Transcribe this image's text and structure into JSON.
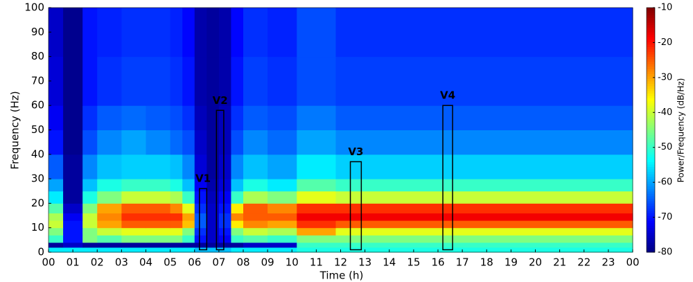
{
  "chart_data": {
    "type": "heatmap",
    "colormap": "jet",
    "xlabel": "Time (h)",
    "ylabel": "Frequency (Hz)",
    "colorbar_label": "Power/Frequency (dB/Hz)",
    "xlim": [
      0,
      24
    ],
    "ylim": [
      0,
      100
    ],
    "clim": [
      -80,
      -10
    ],
    "xticks": [
      {
        "value": 0,
        "label": "00"
      },
      {
        "value": 1,
        "label": "01"
      },
      {
        "value": 2,
        "label": "02"
      },
      {
        "value": 3,
        "label": "03"
      },
      {
        "value": 4,
        "label": "04"
      },
      {
        "value": 5,
        "label": "05"
      },
      {
        "value": 6,
        "label": "06"
      },
      {
        "value": 7,
        "label": "07"
      },
      {
        "value": 8,
        "label": "08"
      },
      {
        "value": 9,
        "label": "09"
      },
      10,
      11,
      12,
      13,
      14,
      15,
      16,
      17,
      18,
      19,
      20,
      21,
      22,
      23,
      {
        "value": 24,
        "label": "00"
      }
    ],
    "yticks": [
      0,
      10,
      20,
      30,
      40,
      50,
      60,
      70,
      80,
      90,
      100
    ],
    "cticks": [
      -10,
      -20,
      -30,
      -40,
      -50,
      -60,
      -70,
      -80
    ],
    "x_edges": [
      0,
      0.6,
      1.4,
      2,
      3,
      4,
      5,
      5.5,
      6,
      6.5,
      7,
      7.5,
      8,
      9,
      10.2,
      11.8,
      24
    ],
    "y_edges": [
      0,
      2,
      4,
      7,
      10,
      13,
      16,
      20,
      25,
      30,
      40,
      50,
      60,
      80,
      100
    ],
    "z": [
      [
        -55,
        -55,
        -55,
        -55,
        -55,
        -55,
        -55,
        -55,
        -58,
        -58,
        -58,
        -55,
        -55,
        -55,
        -52,
        -52
      ],
      [
        -78,
        -75,
        -78,
        -78,
        -78,
        -78,
        -78,
        -78,
        -78,
        -78,
        -78,
        -78,
        -75,
        -75,
        -50,
        -50
      ],
      [
        -50,
        -70,
        -45,
        -48,
        -45,
        -45,
        -45,
        -50,
        -70,
        -75,
        -72,
        -50,
        -48,
        -50,
        -45,
        -45
      ],
      [
        -45,
        -70,
        -45,
        -40,
        -38,
        -38,
        -38,
        -45,
        -68,
        -75,
        -70,
        -45,
        -40,
        -42,
        -30,
        -38
      ],
      [
        -40,
        -70,
        -40,
        -30,
        -25,
        -25,
        -25,
        -32,
        -65,
        -75,
        -68,
        -35,
        -28,
        -30,
        -22,
        -25
      ],
      [
        -42,
        -72,
        -40,
        -28,
        -22,
        -22,
        -22,
        -30,
        -65,
        -75,
        -68,
        -28,
        -25,
        -25,
        -18,
        -18
      ],
      [
        -48,
        -75,
        -45,
        -30,
        -25,
        -25,
        -28,
        -38,
        -68,
        -75,
        -70,
        -35,
        -25,
        -28,
        -22,
        -22
      ],
      [
        -55,
        -78,
        -52,
        -45,
        -40,
        -40,
        -42,
        -50,
        -70,
        -76,
        -72,
        -50,
        -42,
        -45,
        -38,
        -40
      ],
      [
        -60,
        -78,
        -58,
        -52,
        -50,
        -50,
        -52,
        -58,
        -72,
        -77,
        -74,
        -58,
        -52,
        -55,
        -48,
        -50
      ],
      [
        -65,
        -78,
        -62,
        -58,
        -57,
        -57,
        -58,
        -62,
        -74,
        -78,
        -75,
        -62,
        -58,
        -60,
        -55,
        -57
      ],
      [
        -70,
        -79,
        -66,
        -62,
        -60,
        -62,
        -64,
        -66,
        -75,
        -78,
        -76,
        -66,
        -62,
        -64,
        -60,
        -62
      ],
      [
        -72,
        -79,
        -68,
        -65,
        -64,
        -65,
        -66,
        -68,
        -76,
        -78,
        -76,
        -68,
        -65,
        -66,
        -63,
        -65
      ],
      [
        -74,
        -79,
        -70,
        -68,
        -67,
        -67,
        -68,
        -70,
        -77,
        -78,
        -77,
        -70,
        -67,
        -68,
        -66,
        -67
      ],
      [
        -75,
        -79,
        -70,
        -69,
        -68,
        -68,
        -69,
        -71,
        -77,
        -78,
        -77,
        -71,
        -68,
        -69,
        -66,
        -68
      ]
    ],
    "annotations": [
      {
        "label": "V1",
        "x": [
          6.2,
          6.5
        ],
        "y": [
          1,
          26
        ]
      },
      {
        "label": "V2",
        "x": [
          6.9,
          7.2
        ],
        "y": [
          1,
          58
        ]
      },
      {
        "label": "V3",
        "x": [
          12.4,
          12.85
        ],
        "y": [
          1,
          37
        ]
      },
      {
        "label": "V4",
        "x": [
          16.2,
          16.6
        ],
        "y": [
          1,
          60
        ]
      }
    ]
  }
}
